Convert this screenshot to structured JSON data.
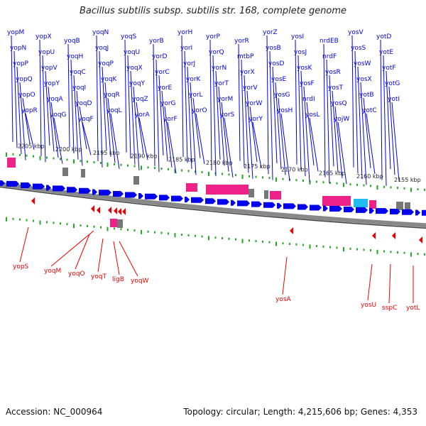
{
  "title": "Bacillus subtilis subsp. subtilis str. 168, complete genome",
  "footer": {
    "accession": "Accession: NC_000964",
    "topology": "Topology: circular; Length: 4,215,606 bp; Genes: 4,353"
  },
  "colors": {
    "forward_gene": "#0000ee",
    "reverse_gene": "#ee0000",
    "feature_pink": "#ee2288",
    "feature_cyan": "#22bbee",
    "feature_gray": "#777777",
    "ruler_tick": "#22aa22",
    "backbone": "#888888"
  },
  "ruler_labels": [
    "2205 kbp",
    "2200 kbp",
    "2195 kbp",
    "2190 kbp",
    "2185 kbp",
    "2180 kbp",
    "2175 kbp",
    "2170 kbp",
    "2165 kbp",
    "2160 kbp",
    "2155 kbp"
  ],
  "forward_gene_labels": [
    "yopM",
    "yopN",
    "yopP",
    "yopQ",
    "yopO",
    "yopR",
    "yopX",
    "yopU",
    "yopV",
    "yopY",
    "yoqA",
    "yoqG",
    "yoqB",
    "yoqH",
    "yoqC",
    "yoqI",
    "yoqD",
    "yoqF",
    "yoqN",
    "yoqJ",
    "yoqP",
    "yoqK",
    "yoqR",
    "yoqL",
    "yoqS",
    "yoqU",
    "yoqX",
    "yoqY",
    "yoqZ",
    "yorA",
    "yorB",
    "yorD",
    "yorC",
    "yorE",
    "yorG",
    "yorF",
    "yorH",
    "yorI",
    "yorJ",
    "yorK",
    "yorL",
    "yorO",
    "yorP",
    "yorQ",
    "yorN",
    "yorT",
    "yorM",
    "yorS",
    "yorR",
    "mtbP",
    "yorX",
    "yorV",
    "yorW",
    "yorY",
    "yorZ",
    "yosB",
    "yosD",
    "yosE",
    "yosG",
    "yosH",
    "yosI",
    "yosJ",
    "yosK",
    "yosF",
    "nrdI",
    "yosL",
    "nrdEB",
    "nrdF",
    "yosR",
    "yosT",
    "yosQ",
    "yojW",
    "yosV",
    "yosS",
    "yosW",
    "yosX",
    "yotB",
    "yotC",
    "yotD",
    "yotE",
    "yotF",
    "yotG",
    "yotI"
  ],
  "reverse_gene_labels": [
    "yopS",
    "yoqM",
    "yoqO",
    "yoqT",
    "ligB",
    "yoqW",
    "yosA",
    "yosU",
    "sspC",
    "yotL"
  ]
}
